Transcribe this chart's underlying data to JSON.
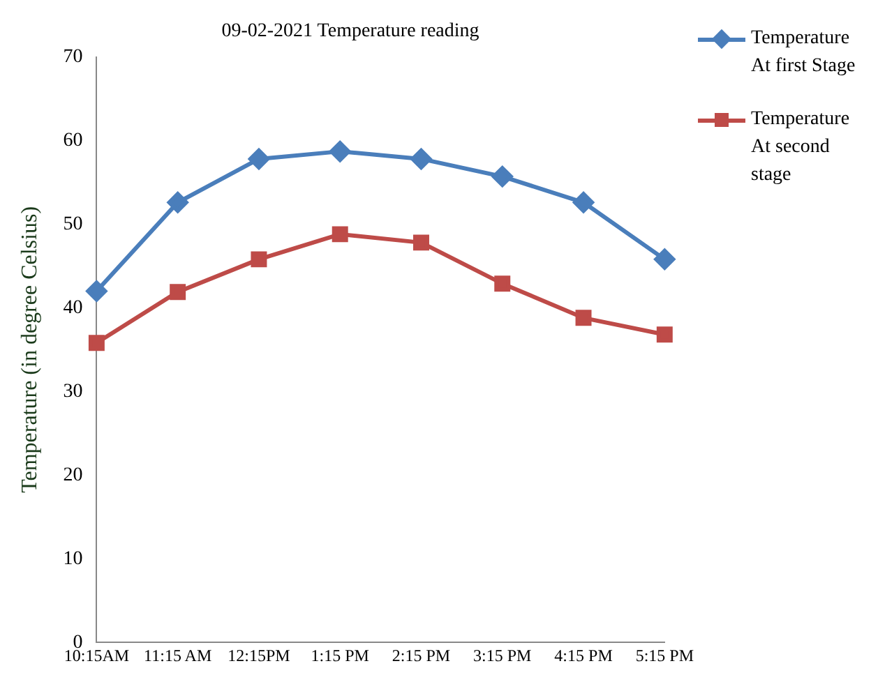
{
  "chart_data": {
    "type": "line",
    "title": "09-02-2021 Temperature reading",
    "ylabel": "Temperature (in degree Celsius)",
    "categories": [
      "10:15AM",
      "11:15 AM",
      "12:15PM",
      "1:15 PM",
      "2:15 PM",
      "3:15 PM",
      "4:15 PM",
      "5:15 PM"
    ],
    "series": [
      {
        "name": "Temperature At first Stage",
        "color": "#4a7ebb",
        "marker": "diamond",
        "values": [
          42.0,
          52.6,
          57.8,
          58.7,
          57.8,
          55.7,
          52.6,
          45.8
        ]
      },
      {
        "name": "Temperature At second stage",
        "color": "#be4b48",
        "marker": "square",
        "values": [
          35.8,
          41.9,
          45.8,
          48.8,
          47.8,
          42.9,
          38.8,
          36.8
        ]
      }
    ],
    "ylim": [
      0,
      70
    ],
    "yticks": [
      0,
      10,
      20,
      30,
      40,
      50,
      60,
      70
    ],
    "grid": false,
    "legend": "right"
  }
}
